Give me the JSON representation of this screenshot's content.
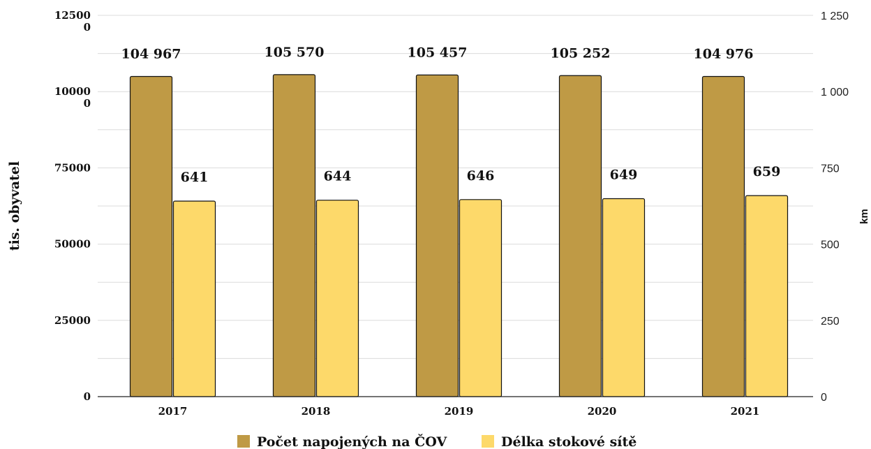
{
  "chart_data": {
    "type": "bar",
    "categories": [
      "2017",
      "2018",
      "2019",
      "2020",
      "2021"
    ],
    "series": [
      {
        "name": "Počet napojených na ČOV",
        "axis": "left",
        "color": "#BF9A45",
        "values": [
          104967,
          105570,
          105457,
          105252,
          104976
        ],
        "labels": [
          "104 967",
          "105 570",
          "105 457",
          "105 252",
          "104 976"
        ]
      },
      {
        "name": "Délka stokové sítě",
        "axis": "right",
        "color": "#FDD96A",
        "values": [
          641,
          644,
          646,
          649,
          659
        ],
        "labels": [
          "641",
          "644",
          "646",
          "649",
          "659"
        ]
      }
    ],
    "ylabel": "tis. obyvatel",
    "y2label": "km",
    "ylim": [
      0,
      125000
    ],
    "y2lim": [
      0,
      1250
    ],
    "yticks": [
      {
        "value": 0,
        "label": "0"
      },
      {
        "value": 25000,
        "label": "25000"
      },
      {
        "value": 50000,
        "label": "50000"
      },
      {
        "value": 75000,
        "label": "75000"
      },
      {
        "value": 100000,
        "label": "100000"
      },
      {
        "value": 125000,
        "label": "125000"
      }
    ],
    "y2ticks": [
      {
        "value": 0,
        "label": "0"
      },
      {
        "value": 250,
        "label": "250"
      },
      {
        "value": 500,
        "label": "500"
      },
      {
        "value": 750,
        "label": "750"
      },
      {
        "value": 1000,
        "label": "1 000"
      },
      {
        "value": 1250,
        "label": "1 250"
      }
    ],
    "grid": true,
    "legend_position": "bottom"
  }
}
